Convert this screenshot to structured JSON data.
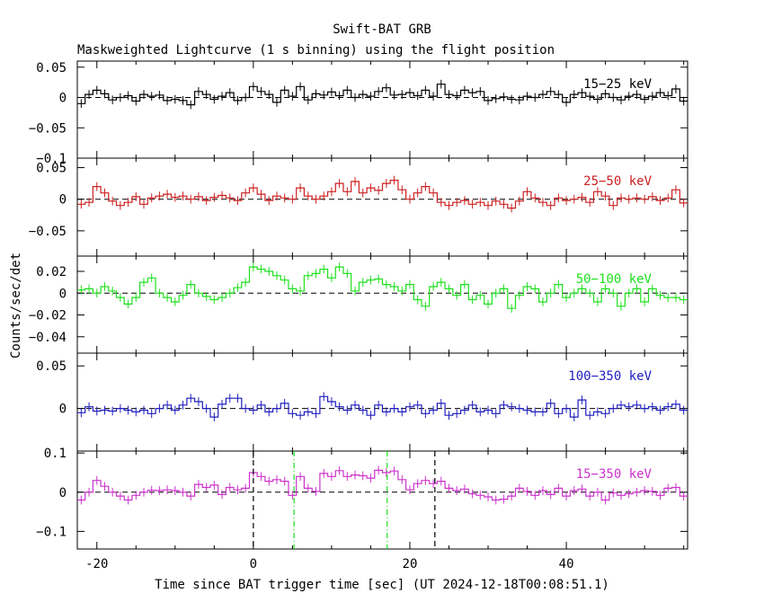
{
  "title": "Swift-BAT GRB",
  "subtitle": "Maskweighted Lightcurve (1 s binning) using the flight position",
  "xlabel": "Time since BAT trigger time [sec] (UT 2024-12-18T00:08:51.1)",
  "ylabel": "Counts/sec/det",
  "chart_data": {
    "type": "line",
    "drawstyle": "step",
    "x": [
      -22.0,
      -21.0,
      -20.0,
      -19.0,
      -18.0,
      -17.0,
      -16.0,
      -15.0,
      -14.0,
      -13.0,
      -12.0,
      -11.0,
      -10.0,
      -9.0,
      -8.0,
      -7.0,
      -6.0,
      -5.0,
      -4.0,
      -3.0,
      -2.0,
      -1.0,
      0.0,
      1.0,
      2.0,
      3.0,
      4.0,
      5.0,
      6.0,
      7.0,
      8.0,
      9.0,
      10.0,
      11.0,
      12.0,
      13.0,
      14.0,
      15.0,
      16.0,
      17.0,
      18.0,
      19.0,
      20.0,
      21.0,
      22.0,
      23.0,
      24.0,
      25.0,
      26.0,
      27.0,
      28.0,
      29.0,
      30.0,
      31.0,
      32.0,
      33.0,
      34.0,
      35.0,
      36.0,
      37.0,
      38.0,
      39.0,
      40.0,
      41.0,
      42.0,
      43.0,
      44.0,
      45.0,
      46.0,
      47.0,
      48.0,
      49.0,
      50.0,
      51.0,
      52.0,
      53.0,
      54.0,
      55.0
    ],
    "xlim": [
      -22.5,
      55.5
    ],
    "xticks": [
      -20,
      0,
      20,
      40
    ],
    "xtick_labels": [
      "-20",
      "0",
      "20",
      "40"
    ],
    "panels": [
      {
        "name": "15-25 keV",
        "label": "15−25 keV",
        "color": "#000000",
        "ylim": [
          -0.1,
          0.06
        ],
        "yticks": [
          0.05,
          0,
          -0.05,
          -0.1
        ],
        "ytick_labels": [
          "0.05",
          "0",
          "−0.05",
          "−0.1"
        ],
        "values": [
          -0.01,
          0.005,
          0.012,
          0.006,
          -0.004,
          0.0,
          0.003,
          -0.006,
          0.005,
          0.002,
          0.004,
          -0.005,
          -0.003,
          -0.005,
          -0.012,
          0.01,
          0.005,
          -0.003,
          0.002,
          0.008,
          -0.005,
          0.0,
          0.018,
          0.01,
          0.005,
          -0.008,
          0.012,
          0.002,
          0.018,
          -0.004,
          0.006,
          0.004,
          0.009,
          0.003,
          0.012,
          0.0,
          0.005,
          0.002,
          0.01,
          0.016,
          0.004,
          0.005,
          0.008,
          0.003,
          0.012,
          0.002,
          0.022,
          0.005,
          0.003,
          0.012,
          0.008,
          0.01,
          -0.005,
          -0.002,
          0.001,
          -0.003,
          -0.004,
          0.002,
          0.0,
          0.005,
          0.01,
          0.005,
          -0.008,
          0.005,
          0.008,
          0.002,
          -0.003,
          0.006,
          0.0,
          -0.004,
          0.002,
          0.005,
          -0.003,
          0.002,
          0.008,
          0.003,
          0.014,
          -0.006
        ]
      },
      {
        "name": "25-50 keV",
        "label": "25−50 keV",
        "color": "#cc1f1f",
        "ylim": [
          -0.09,
          0.065
        ],
        "yticks": [
          0.05,
          0,
          -0.05
        ],
        "ytick_labels": [
          "0.05",
          "0",
          "−0.05"
        ],
        "values": [
          -0.008,
          -0.005,
          0.02,
          0.01,
          -0.003,
          -0.01,
          -0.005,
          0.004,
          -0.008,
          0.002,
          0.005,
          0.008,
          0.003,
          0.005,
          0.0,
          0.004,
          -0.002,
          0.003,
          0.006,
          0.002,
          -0.002,
          0.01,
          0.018,
          0.008,
          -0.002,
          0.005,
          0.002,
          0.0,
          0.018,
          0.005,
          0.0,
          0.005,
          0.012,
          0.025,
          0.012,
          0.028,
          0.01,
          0.018,
          0.014,
          0.025,
          0.03,
          0.015,
          0.0,
          0.01,
          0.02,
          0.01,
          -0.005,
          -0.01,
          -0.005,
          -0.002,
          -0.008,
          -0.005,
          -0.01,
          -0.003,
          -0.008,
          -0.014,
          -0.003,
          0.012,
          0.002,
          -0.005,
          -0.01,
          0.002,
          -0.002,
          0.0,
          0.003,
          -0.005,
          0.012,
          0.005,
          -0.01,
          0.002,
          0.0,
          0.002,
          0.0,
          0.004,
          -0.002,
          0.002,
          0.015,
          -0.006
        ]
      },
      {
        "name": "50-100 keV",
        "label": "50−100 keV",
        "color": "#1ee01e",
        "ylim": [
          -0.055,
          0.034
        ],
        "yticks": [
          0.02,
          0,
          -0.02,
          -0.04
        ],
        "ytick_labels": [
          "0.02",
          "0",
          "−0.02",
          "−0.04"
        ],
        "values": [
          0.003,
          0.004,
          0.0,
          0.006,
          0.002,
          -0.004,
          -0.01,
          -0.004,
          0.01,
          0.014,
          0.0,
          -0.004,
          -0.008,
          -0.002,
          0.008,
          0.0,
          -0.003,
          -0.006,
          -0.004,
          0.0,
          0.005,
          0.01,
          0.024,
          0.022,
          0.02,
          0.016,
          0.012,
          0.004,
          0.002,
          0.016,
          0.018,
          0.022,
          0.014,
          0.024,
          0.018,
          0.002,
          0.01,
          0.012,
          0.013,
          0.008,
          0.006,
          0.002,
          0.008,
          -0.006,
          -0.012,
          0.006,
          0.01,
          0.004,
          -0.002,
          0.008,
          -0.006,
          -0.002,
          -0.01,
          0.0,
          0.004,
          -0.014,
          -0.002,
          0.006,
          0.004,
          -0.008,
          0.0,
          0.008,
          -0.004,
          0.0,
          0.004,
          0.0,
          -0.008,
          0.004,
          0.0,
          -0.012,
          0.0,
          0.004,
          -0.008,
          0.004,
          -0.002,
          -0.004,
          -0.004,
          -0.006
        ]
      },
      {
        "name": "100-350 keV",
        "label": "100−350 keV",
        "color": "#1f1fbf",
        "ylim": [
          -0.05,
          0.065
        ],
        "yticks": [
          0.05,
          0
        ],
        "ytick_labels": [
          "0.05",
          "0"
        ],
        "values": [
          -0.005,
          0.002,
          -0.003,
          -0.002,
          -0.003,
          0.0,
          -0.002,
          -0.004,
          -0.002,
          -0.006,
          0.0,
          0.004,
          -0.002,
          0.004,
          0.012,
          0.008,
          0.0,
          -0.01,
          0.005,
          0.012,
          0.012,
          0.0,
          -0.002,
          0.004,
          -0.004,
          0.0,
          0.006,
          -0.006,
          -0.008,
          -0.004,
          -0.006,
          0.014,
          0.008,
          0.002,
          -0.002,
          0.004,
          -0.002,
          -0.008,
          0.004,
          -0.004,
          0.0,
          -0.004,
          0.002,
          0.004,
          -0.006,
          -0.002,
          0.006,
          -0.008,
          -0.006,
          -0.002,
          0.004,
          -0.004,
          -0.002,
          -0.006,
          0.004,
          0.002,
          0.0,
          -0.002,
          -0.004,
          -0.004,
          0.006,
          -0.006,
          0.0,
          -0.01,
          0.01,
          -0.008,
          -0.004,
          -0.006,
          0.0,
          0.004,
          0.002,
          0.004,
          0.0,
          0.002,
          -0.002,
          0.002,
          0.005,
          -0.002
        ]
      },
      {
        "name": "15-350 keV",
        "label": "15−350 keV",
        "color": "#cc33cc",
        "ylim": [
          -0.145,
          0.105
        ],
        "yticks": [
          0.1,
          0,
          -0.1
        ],
        "ytick_labels": [
          "0.1",
          "0",
          "−0.1"
        ],
        "values": [
          -0.02,
          0.0,
          0.03,
          0.015,
          0.0,
          -0.01,
          -0.02,
          -0.008,
          0.0,
          0.005,
          0.004,
          0.006,
          0.004,
          0.0,
          -0.01,
          0.02,
          0.012,
          0.018,
          -0.006,
          0.012,
          0.006,
          0.01,
          0.05,
          0.04,
          0.028,
          0.032,
          0.028,
          -0.008,
          0.04,
          0.01,
          0.002,
          0.048,
          0.04,
          0.055,
          0.04,
          0.044,
          0.042,
          0.036,
          0.056,
          0.05,
          0.054,
          0.032,
          0.006,
          0.022,
          0.03,
          0.022,
          0.028,
          0.01,
          0.004,
          0.008,
          -0.004,
          -0.008,
          -0.012,
          -0.02,
          -0.018,
          -0.01,
          0.01,
          0.002,
          -0.008,
          0.004,
          -0.006,
          0.01,
          -0.01,
          0.004,
          0.008,
          -0.01,
          0.0,
          -0.02,
          -0.002,
          -0.008,
          -0.004,
          0.0,
          0.004,
          0.002,
          -0.008,
          0.01,
          0.012,
          -0.01
        ]
      }
    ],
    "reference_lines": [
      {
        "x": 0,
        "style": "dashed",
        "color": "#000000"
      },
      {
        "x": 23.2,
        "style": "dashed",
        "color": "#000000"
      },
      {
        "x": 5.2,
        "style": "dash-dot",
        "color": "#1ee01e"
      },
      {
        "x": 17.1,
        "style": "dash-dot",
        "color": "#1ee01e"
      }
    ]
  }
}
